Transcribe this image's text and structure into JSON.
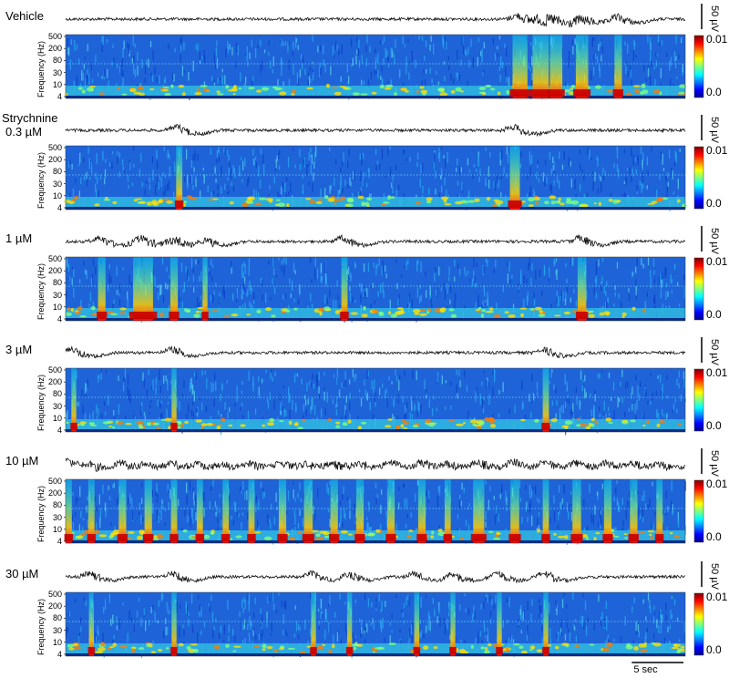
{
  "chart_data": {
    "type": "heatmap",
    "description_free": true,
    "ylabel": "Frequency (Hz)",
    "y_ticks": [
      "500",
      "200",
      "80",
      "30",
      "10",
      "4"
    ],
    "colorbar": {
      "min_label": "0.0",
      "max_label": "0.01",
      "colormap": [
        "#00008f",
        "#0000ff",
        "#0080ff",
        "#00ffff",
        "#80ff80",
        "#ffff00",
        "#ff8000",
        "#ff0000",
        "#800000"
      ]
    },
    "trace_scale_label": "50 µV",
    "time_scale_label": "5 sec",
    "time_scale_seconds": 5,
    "duration_seconds": 60,
    "panels": [
      {
        "label_lines": [
          "Vehicle"
        ],
        "events": [
          {
            "t": 44.0,
            "w": 1.2
          },
          {
            "t": 46.0,
            "w": 1.3
          },
          {
            "t": 47.5,
            "w": 1.0
          },
          {
            "t": 50.0,
            "w": 1.0
          },
          {
            "t": 53.5,
            "w": 0.6
          }
        ]
      },
      {
        "label_lines": [
          "Strychnine",
          "0.3 µM"
        ],
        "events": [
          {
            "t": 11.0,
            "w": 0.5
          },
          {
            "t": 43.5,
            "w": 0.8
          }
        ]
      },
      {
        "label_lines": [
          "1 µM"
        ],
        "events": [
          {
            "t": 3.5,
            "w": 0.6
          },
          {
            "t": 7.5,
            "w": 1.6
          },
          {
            "t": 10.5,
            "w": 0.6
          },
          {
            "t": 13.5,
            "w": 0.4
          },
          {
            "t": 27.0,
            "w": 0.5
          },
          {
            "t": 50.0,
            "w": 0.7
          }
        ]
      },
      {
        "label_lines": [
          "3 µM"
        ],
        "events": [
          {
            "t": 0.8,
            "w": 0.4
          },
          {
            "t": 10.5,
            "w": 0.4
          },
          {
            "t": 46.5,
            "w": 0.5
          }
        ]
      },
      {
        "label_lines": [
          "10 µM"
        ],
        "events": [
          {
            "t": 0.3,
            "w": 0.5
          },
          {
            "t": 2.5,
            "w": 0.5
          },
          {
            "t": 5.5,
            "w": 0.6
          },
          {
            "t": 8.0,
            "w": 0.6
          },
          {
            "t": 10.5,
            "w": 0.5
          },
          {
            "t": 13.0,
            "w": 0.5
          },
          {
            "t": 15.5,
            "w": 0.5
          },
          {
            "t": 18.0,
            "w": 0.5
          },
          {
            "t": 21.0,
            "w": 0.6
          },
          {
            "t": 23.5,
            "w": 0.7
          },
          {
            "t": 26.0,
            "w": 0.6
          },
          {
            "t": 28.5,
            "w": 0.6
          },
          {
            "t": 31.5,
            "w": 0.6
          },
          {
            "t": 34.5,
            "w": 0.6
          },
          {
            "t": 37.0,
            "w": 0.5
          },
          {
            "t": 40.0,
            "w": 0.9
          },
          {
            "t": 43.5,
            "w": 0.7
          },
          {
            "t": 46.5,
            "w": 0.5
          },
          {
            "t": 49.5,
            "w": 0.7
          },
          {
            "t": 52.5,
            "w": 0.6
          },
          {
            "t": 55.0,
            "w": 0.6
          },
          {
            "t": 57.5,
            "w": 0.5
          }
        ]
      },
      {
        "label_lines": [
          "30 µM"
        ],
        "events": [
          {
            "t": 2.5,
            "w": 0.4
          },
          {
            "t": 10.5,
            "w": 0.4
          },
          {
            "t": 24.0,
            "w": 0.4
          },
          {
            "t": 27.5,
            "w": 0.4
          },
          {
            "t": 34.0,
            "w": 0.4
          },
          {
            "t": 37.5,
            "w": 0.4
          },
          {
            "t": 42.0,
            "w": 0.4
          },
          {
            "t": 46.5,
            "w": 0.4
          }
        ]
      }
    ]
  }
}
